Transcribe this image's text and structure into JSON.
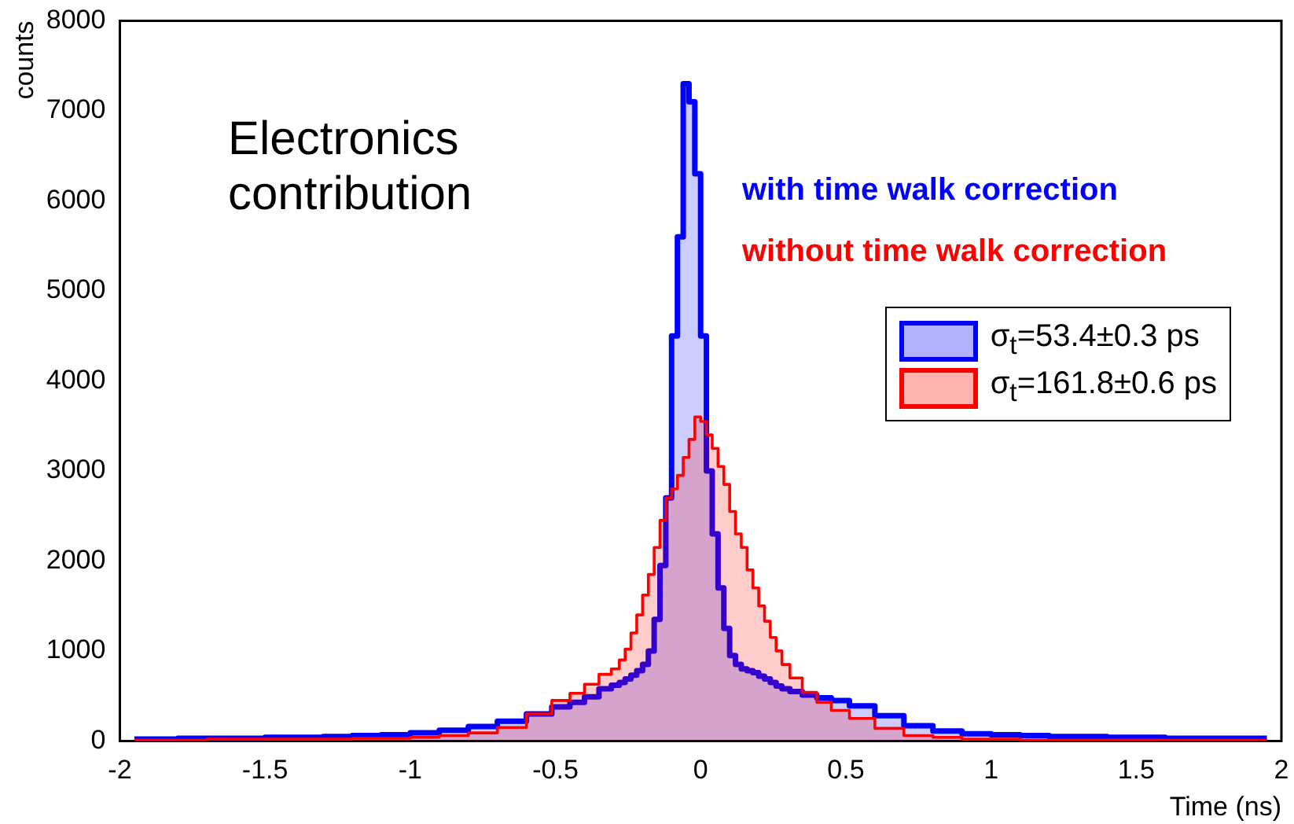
{
  "chart_data": {
    "type": "area",
    "xlabel": "Time (ns)",
    "ylabel": "counts",
    "annotations": [
      "Electronics contribution",
      "with time walk correction",
      "without time walk correction"
    ],
    "x": [
      -1.95,
      -1.85,
      -1.75,
      -1.65,
      -1.55,
      -1.45,
      -1.35,
      -1.25,
      -1.15,
      -1.05,
      -0.95,
      -0.85,
      -0.75,
      -0.65,
      -0.55,
      -0.475,
      -0.425,
      -0.375,
      -0.325,
      -0.29,
      -0.27,
      -0.25,
      -0.23,
      -0.21,
      -0.19,
      -0.17,
      -0.15,
      -0.13,
      -0.11,
      -0.09,
      -0.07,
      -0.05,
      -0.03,
      -0.01,
      0.01,
      0.03,
      0.05,
      0.07,
      0.09,
      0.11,
      0.13,
      0.15,
      0.17,
      0.19,
      0.21,
      0.23,
      0.25,
      0.27,
      0.29,
      0.325,
      0.375,
      0.425,
      0.475,
      0.55,
      0.65,
      0.75,
      0.85,
      0.95,
      1.05,
      1.15,
      1.25,
      1.35,
      1.45,
      1.55,
      1.65,
      1.75,
      1.85,
      1.95
    ],
    "series": [
      {
        "name": "σ$_{t}$=53.4±0.3 ps",
        "color": "#0000ff",
        "values": [
          20,
          20,
          30,
          30,
          30,
          40,
          40,
          50,
          60,
          70,
          90,
          120,
          160,
          220,
          300,
          380,
          430,
          490,
          580,
          620,
          650,
          690,
          730,
          780,
          850,
          1000,
          1350,
          1950,
          2700,
          4500,
          5600,
          7300,
          7100,
          6300,
          4500,
          3000,
          2300,
          1700,
          1250,
          950,
          850,
          800,
          780,
          760,
          720,
          690,
          650,
          610,
          580,
          550,
          510,
          480,
          450,
          390,
          280,
          170,
          110,
          80,
          70,
          60,
          50,
          50,
          40,
          40,
          30,
          30,
          30,
          30
        ]
      },
      {
        "name": "σ$_{t}$=161.8±0.6 ps",
        "color": "#ff0000",
        "values": [
          10,
          10,
          10,
          20,
          20,
          20,
          20,
          20,
          30,
          30,
          40,
          60,
          90,
          150,
          300,
          450,
          530,
          630,
          740,
          800,
          900,
          1020,
          1200,
          1400,
          1620,
          1850,
          2150,
          2450,
          2700,
          2800,
          2950,
          3150,
          3350,
          3600,
          3550,
          3400,
          3250,
          3050,
          2850,
          2550,
          2300,
          2150,
          1900,
          1700,
          1500,
          1330,
          1150,
          1000,
          850,
          700,
          540,
          430,
          340,
          250,
          140,
          60,
          40,
          20,
          20,
          10,
          10,
          10,
          10,
          10,
          10,
          10,
          10,
          10
        ]
      }
    ],
    "xlim": [
      -2,
      2
    ],
    "xticks": [
      -2,
      -1.5,
      -1,
      -0.5,
      0,
      0.5,
      1,
      1.5,
      2
    ],
    "ylim": [
      0,
      8000
    ],
    "yticks": [
      0,
      1000,
      2000,
      3000,
      4000,
      5000,
      6000,
      7000,
      8000
    ],
    "grid": false,
    "legend": "top right"
  }
}
